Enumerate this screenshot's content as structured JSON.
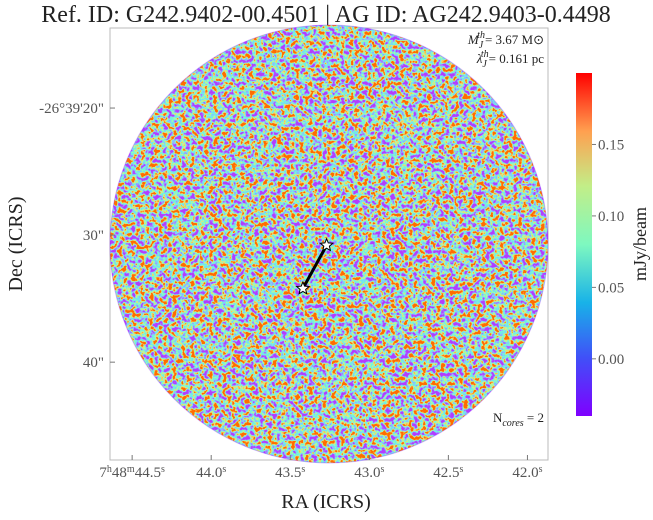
{
  "chart_data": {
    "type": "image",
    "title": "Ref. ID: G242.9402-00.4501 | AG ID: AG242.9403-0.4498",
    "x_label": "RA (ICRS)",
    "y_label": "Dec (ICRS)",
    "xlim": [
      44.64,
      41.87
    ],
    "xticks": [
      {
        "value": 44.5,
        "label": "7h48m44.5s"
      },
      {
        "value": 44.0,
        "label": "44.0s"
      },
      {
        "value": 43.5,
        "label": "43.5s"
      },
      {
        "value": 43.0,
        "label": "43.0s"
      },
      {
        "value": 42.5,
        "label": "42.5s"
      },
      {
        "value": 42.0,
        "label": "42.0s"
      }
    ],
    "ylim": [
      47.7,
      13.7
    ],
    "yticks": [
      {
        "value": 20,
        "label": "-26°39'20\""
      },
      {
        "value": 30,
        "label": "30\""
      },
      {
        "value": 40,
        "label": "40\""
      }
    ],
    "colorbar": {
      "label": "mJy/beam",
      "clim": [
        -0.04,
        0.2
      ],
      "ticks": [
        {
          "value": 0,
          "label": "0.00"
        },
        {
          "value": 0.05,
          "label": "0.05"
        },
        {
          "value": 0.1,
          "label": "0.10"
        },
        {
          "value": 0.15,
          "label": "0.15"
        }
      ]
    },
    "cores": {
      "x": [
        43.27,
        43.42
      ],
      "y": [
        30.8,
        34.2
      ],
      "color": "#ffffff"
    },
    "annotations": [
      "MJth= 3.67 M⊙",
      "λJth= 0.161 pc",
      "Ncores = 2"
    ]
  }
}
